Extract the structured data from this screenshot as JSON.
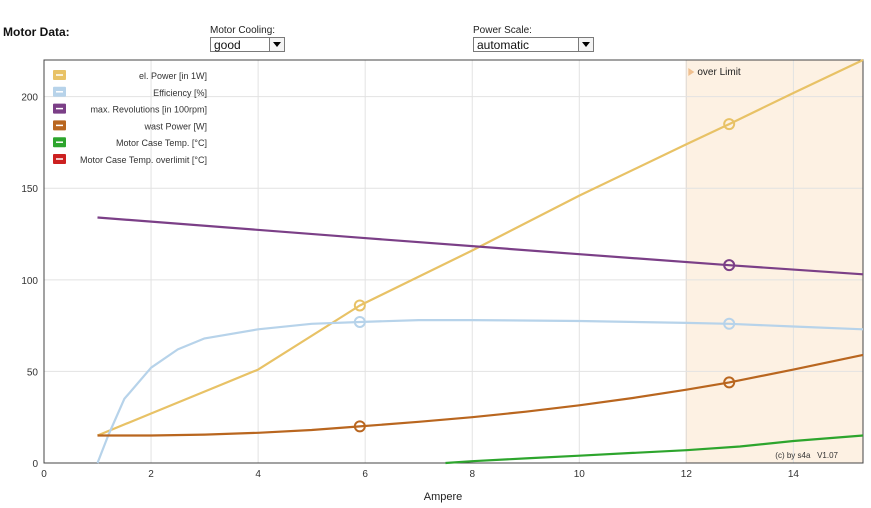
{
  "header": {
    "title": "Motor Data:"
  },
  "controls": {
    "cooling": {
      "label": "Motor Cooling:",
      "value": "good"
    },
    "scale": {
      "label": "Power Scale:",
      "value": "automatic"
    }
  },
  "chart_data": {
    "type": "line",
    "xlabel": "Ampere",
    "ylabel": "",
    "xlim": [
      0,
      15.3
    ],
    "ylim": [
      0,
      220
    ],
    "xticks": [
      0,
      2,
      4,
      6,
      8,
      10,
      12,
      14
    ],
    "yticks": [
      0,
      50,
      100,
      150,
      200
    ],
    "grid": true,
    "legend_position": "top-left",
    "over_limit": {
      "label": "over Limit",
      "from": 12,
      "to": 15.3,
      "color": "#fdf1e3"
    },
    "copyright": "(c) by s4a   V1.07",
    "series": [
      {
        "name": "el. Power [in 1W]",
        "color": "#e8c266",
        "points": [
          [
            1.0,
            15
          ],
          [
            2,
            27
          ],
          [
            4,
            51
          ],
          [
            5.9,
            86
          ],
          [
            8,
            116
          ],
          [
            10,
            146
          ],
          [
            12,
            174
          ],
          [
            12.8,
            185
          ],
          [
            14,
            202
          ],
          [
            15.3,
            220
          ]
        ],
        "markers": [
          [
            5.9,
            86
          ],
          [
            12.8,
            185
          ]
        ]
      },
      {
        "name": "Efficiency [%]",
        "color": "#b7d3ea",
        "points": [
          [
            1.0,
            0
          ],
          [
            1.2,
            15
          ],
          [
            1.5,
            35
          ],
          [
            2,
            52
          ],
          [
            2.5,
            62
          ],
          [
            3,
            68
          ],
          [
            4,
            73
          ],
          [
            5,
            76
          ],
          [
            5.9,
            77
          ],
          [
            7,
            78
          ],
          [
            8,
            78
          ],
          [
            10,
            77.5
          ],
          [
            12,
            76.5
          ],
          [
            12.8,
            76
          ],
          [
            14,
            74.5
          ],
          [
            15.3,
            73
          ]
        ],
        "markers": [
          [
            5.9,
            77
          ],
          [
            12.8,
            76
          ]
        ]
      },
      {
        "name": "max. Revolutions [in 100rpm]",
        "color": "#7b3f87",
        "points": [
          [
            1.0,
            134
          ],
          [
            5.9,
            123
          ],
          [
            10,
            114
          ],
          [
            12.8,
            108
          ],
          [
            15.3,
            103
          ]
        ],
        "markers": [
          [
            12.8,
            108
          ]
        ]
      },
      {
        "name": "wast Power [W]",
        "color": "#b9661f",
        "points": [
          [
            1.0,
            15
          ],
          [
            2,
            15
          ],
          [
            3,
            15.5
          ],
          [
            4,
            16.5
          ],
          [
            5,
            18
          ],
          [
            5.9,
            20
          ],
          [
            7,
            22.5
          ],
          [
            8,
            25
          ],
          [
            9,
            28
          ],
          [
            10,
            31.5
          ],
          [
            11,
            35.5
          ],
          [
            12,
            40
          ],
          [
            12.8,
            44
          ],
          [
            14,
            51
          ],
          [
            15.3,
            59
          ]
        ],
        "markers": [
          [
            5.9,
            20
          ],
          [
            12.8,
            44
          ]
        ]
      },
      {
        "name": "Motor Case Temp. [°C]",
        "color": "#2da52d",
        "points": [
          [
            7.5,
            0
          ],
          [
            8,
            1
          ],
          [
            9,
            2.5
          ],
          [
            10,
            4
          ],
          [
            11,
            5.5
          ],
          [
            12,
            7
          ],
          [
            13,
            9
          ],
          [
            14,
            12
          ],
          [
            15.3,
            15
          ]
        ],
        "markers": []
      },
      {
        "name": "Motor Case Temp. overlimit [°C]",
        "color": "#cc2020",
        "points": [],
        "markers": []
      }
    ]
  }
}
